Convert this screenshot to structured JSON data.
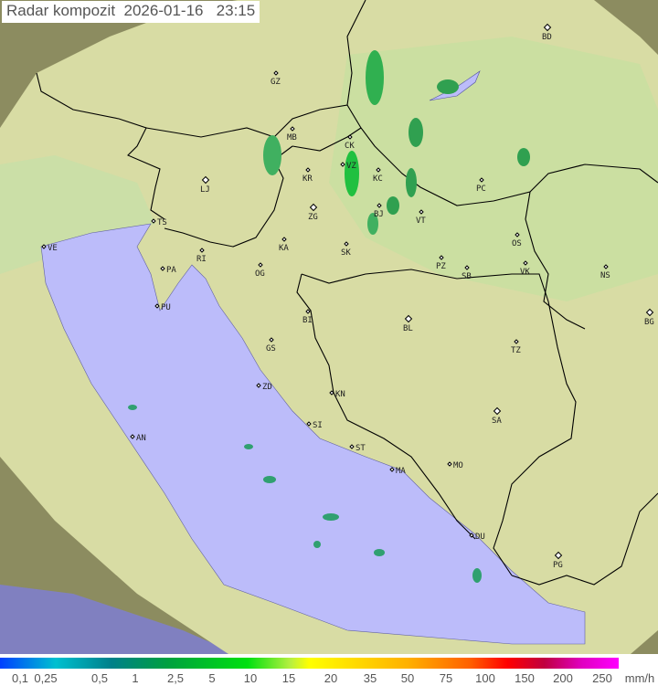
{
  "title": {
    "label": "Radar kompozit",
    "date": "2026-01-16",
    "time": "23:15"
  },
  "colors": {
    "sea": "#bcbcfa",
    "land": "#dcdca8",
    "outside": "#8c8c60",
    "border": "#000000"
  },
  "cities": [
    "BD",
    "GZ",
    "MB",
    "CK",
    "KR",
    "VZ",
    "KC",
    "LJ",
    "PC",
    "ZG",
    "BJ",
    "VT",
    "TS",
    "VE",
    "KA",
    "SK",
    "OS",
    "RI",
    "PA",
    "PZ",
    "SB",
    "VK",
    "NS",
    "OG",
    "PU",
    "BI",
    "BL",
    "BG",
    "GS",
    "TZ",
    "ZD",
    "KN",
    "SA",
    "SI",
    "AN",
    "ST",
    "MA",
    "MO",
    "DU",
    "PG"
  ],
  "legend": {
    "ticks": [
      "0,1",
      "0,25",
      "0,5",
      "1",
      "2,5",
      "5",
      "10",
      "15",
      "20",
      "35",
      "50",
      "75",
      "100",
      "150",
      "200",
      "250"
    ],
    "unit": "mm/h"
  }
}
